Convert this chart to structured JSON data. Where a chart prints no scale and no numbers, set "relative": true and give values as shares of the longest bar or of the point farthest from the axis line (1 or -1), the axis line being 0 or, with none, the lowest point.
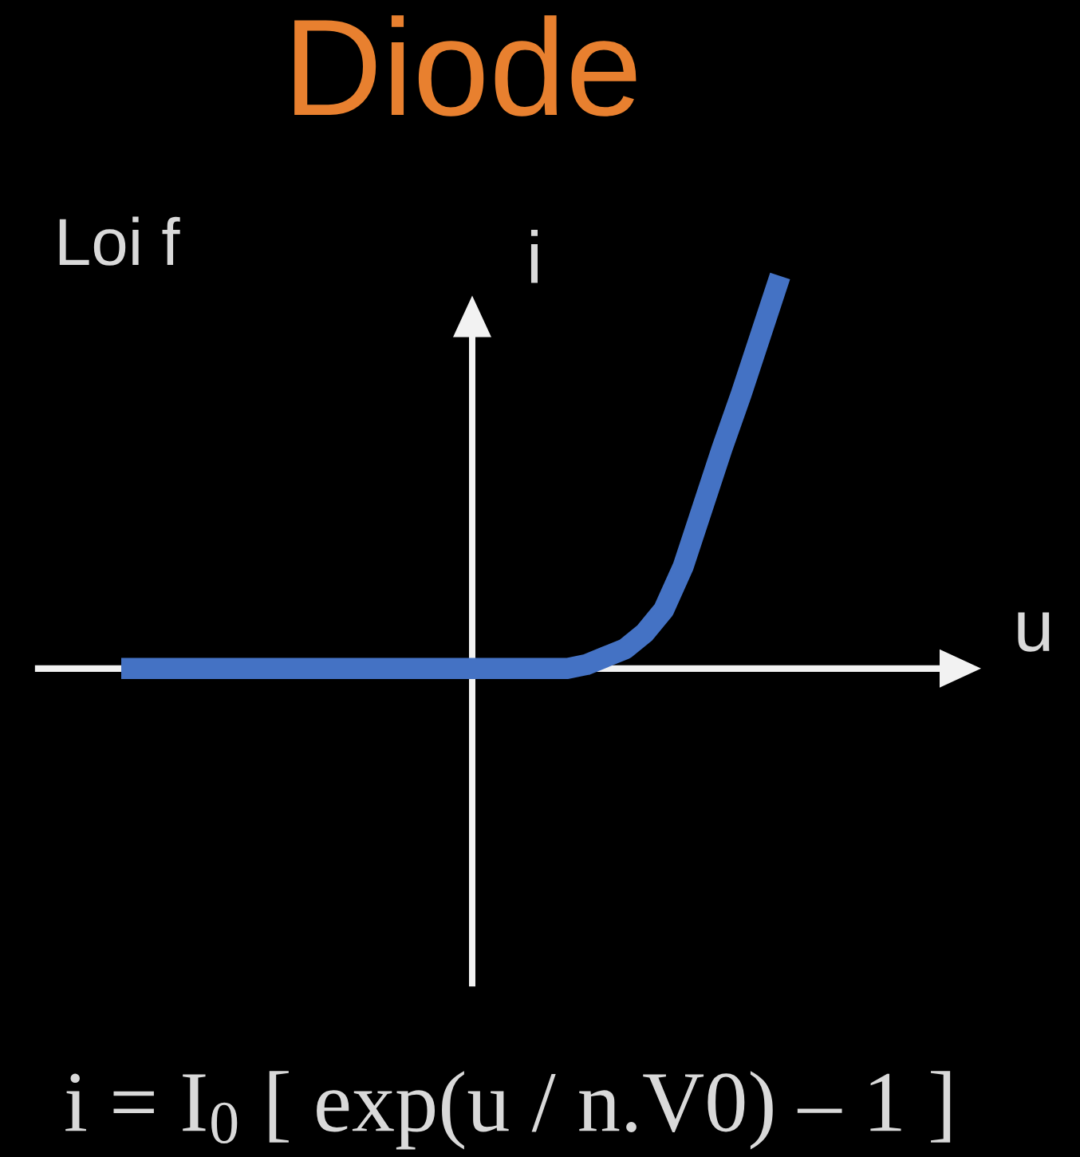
{
  "chart_data": {
    "type": "line",
    "title": "Diode",
    "relative": true,
    "xlabel": "u",
    "ylabel": "i",
    "annotations": [
      "Loi f",
      "i = I$_{0}$ [ exp(u / n.V0) – 1 ]"
    ],
    "categories": [
      null,
      null,
      null,
      null,
      null,
      null,
      null,
      null,
      null,
      null,
      null,
      null,
      null,
      null,
      null,
      null,
      null,
      null,
      null,
      null,
      null,
      null,
      null,
      null,
      null,
      null,
      null,
      null,
      null,
      null,
      null,
      null,
      null,
      null,
      null
    ],
    "series": [
      {
        "color": "#4472c4",
        "values": [
          0,
          0,
          0,
          0,
          0,
          0,
          0,
          0,
          0,
          0,
          0,
          0,
          0,
          0,
          0,
          0,
          0,
          0,
          0,
          0,
          0,
          0,
          0,
          0,
          0.01,
          0.03,
          0.05,
          0.09,
          0.15,
          0.26,
          0.41,
          0.56,
          0.7,
          0.85,
          1
        ]
      }
    ],
    "line_style": "solid"
  }
}
